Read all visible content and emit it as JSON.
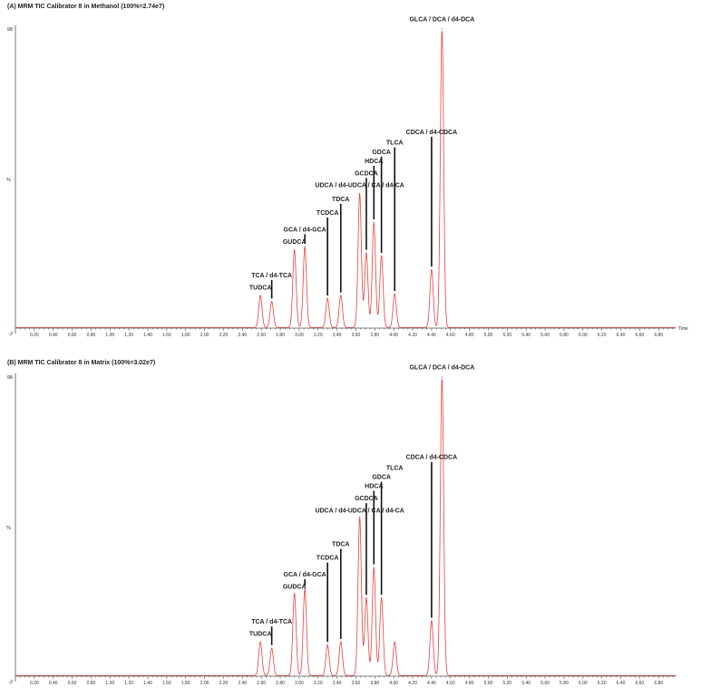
{
  "chart_data": [
    {
      "type": "line",
      "title": "(A) MRM TIC Calibrator 8 in Methanol (100%=2.74e7)",
      "ylabel": "%",
      "yticks": [
        "98",
        "-2"
      ],
      "xlabel": "Time",
      "xlim": [
        0.0,
        6.98
      ],
      "ylim": [
        -2,
        98
      ],
      "xticks": [
        "0.20",
        "0.40",
        "0.60",
        "0.80",
        "1.00",
        "1.20",
        "1.40",
        "1.60",
        "1.80",
        "2.00",
        "2.20",
        "2.40",
        "2.60",
        "2.80",
        "3.00",
        "3.20",
        "3.40",
        "3.60",
        "3.80",
        "4.00",
        "4.20",
        "4.40",
        "4.60",
        "4.80",
        "5.00",
        "5.20",
        "5.40",
        "5.60",
        "5.80",
        "6.00",
        "6.20",
        "6.40",
        "6.60",
        "6.80"
      ],
      "line_color": "#e8413b",
      "baseline": 0,
      "peaks": [
        {
          "x": 2.59,
          "y": 10.5
        },
        {
          "x": 2.71,
          "y": 8.5
        },
        {
          "x": 2.95,
          "y": 25.5
        },
        {
          "x": 3.06,
          "y": 26.5
        },
        {
          "x": 3.3,
          "y": 9.5
        },
        {
          "x": 3.44,
          "y": 10.5
        },
        {
          "x": 3.64,
          "y": 44.0
        },
        {
          "x": 3.71,
          "y": 24.5
        },
        {
          "x": 3.79,
          "y": 34.5
        },
        {
          "x": 3.87,
          "y": 23.5
        },
        {
          "x": 4.01,
          "y": 11.0
        },
        {
          "x": 4.4,
          "y": 19.0
        },
        {
          "x": 4.51,
          "y": 98.0
        }
      ],
      "annotations": [
        {
          "label": "TUDCA",
          "x": 2.59,
          "tip_y": 10.5,
          "label_y": 12.5,
          "line": false
        },
        {
          "label": "TCA / d4-TCA",
          "x": 2.71,
          "tip_y": 9.5,
          "label_y": 16.5,
          "line": true
        },
        {
          "label": "GUDCA",
          "x": 2.95,
          "tip_y": 26.0,
          "label_y": 27.5,
          "line": false
        },
        {
          "label": "GCA / d4-GCA",
          "x": 3.06,
          "tip_y": 27.5,
          "label_y": 31.5,
          "line": true
        },
        {
          "label": "TCDCA",
          "x": 3.3,
          "tip_y": 10.5,
          "label_y": 37.0,
          "line": true
        },
        {
          "label": "TDCA",
          "x": 3.44,
          "tip_y": 11.5,
          "label_y": 41.5,
          "line": true
        },
        {
          "label": "UDCA / d4-UDCA / CA / d4-CA",
          "x": 3.64,
          "tip_y": 45.0,
          "label_y": 46.0,
          "line": false
        },
        {
          "label": "GCDCA",
          "x": 3.71,
          "tip_y": 25.5,
          "label_y": 50.0,
          "line": true
        },
        {
          "label": "HDCA",
          "x": 3.79,
          "tip_y": 35.5,
          "label_y": 54.0,
          "line": true
        },
        {
          "label": "GDCA",
          "x": 3.87,
          "tip_y": 24.5,
          "label_y": 57.0,
          "line": true
        },
        {
          "label": "TLCA",
          "x": 4.01,
          "tip_y": 12.0,
          "label_y": 60.0,
          "line": true
        },
        {
          "label": "CDCA / d4-CDCA",
          "x": 4.4,
          "tip_y": 20.0,
          "label_y": 63.5,
          "line": true
        },
        {
          "label": "GLCA / DCA / d4-DCA",
          "x": 4.51,
          "tip_y": 98.5,
          "label_y": 100.5,
          "line": false
        }
      ]
    },
    {
      "type": "line",
      "title": "(B) MRM TIC Calibrator 8 in Matrix (100%=3.02e7)",
      "ylabel": "%",
      "yticks": [
        "98",
        "-2"
      ],
      "xlabel": "",
      "xlim": [
        0.0,
        6.98
      ],
      "ylim": [
        -2,
        98
      ],
      "xticks": [
        "0.20",
        "0.40",
        "0.60",
        "0.80",
        "1.00",
        "1.20",
        "1.40",
        "1.60",
        "1.80",
        "2.00",
        "2.20",
        "2.40",
        "2.60",
        "2.80",
        "3.00",
        "3.20",
        "3.40",
        "3.60",
        "3.80",
        "4.00",
        "4.20",
        "4.40",
        "4.60",
        "4.80",
        "5.00",
        "5.20",
        "5.40",
        "5.60",
        "5.80",
        "6.00",
        "6.20",
        "6.40",
        "6.60",
        "6.80"
      ],
      "line_color": "#e8413b",
      "baseline": 0,
      "peaks": [
        {
          "x": 2.59,
          "y": 11.0
        },
        {
          "x": 2.71,
          "y": 9.0
        },
        {
          "x": 2.95,
          "y": 27.0
        },
        {
          "x": 3.06,
          "y": 28.5
        },
        {
          "x": 3.3,
          "y": 10.0
        },
        {
          "x": 3.44,
          "y": 11.0
        },
        {
          "x": 3.64,
          "y": 52.0
        },
        {
          "x": 3.71,
          "y": 25.5
        },
        {
          "x": 3.79,
          "y": 35.5
        },
        {
          "x": 3.87,
          "y": 25.5
        },
        {
          "x": 4.01,
          "y": 11.0
        },
        {
          "x": 4.4,
          "y": 18.0
        },
        {
          "x": 4.51,
          "y": 98.0
        }
      ],
      "annotations": [
        {
          "label": "TUDCA",
          "x": 2.59,
          "tip_y": 11.5,
          "label_y": 13.0,
          "line": false
        },
        {
          "label": "TCA / d4-TCA",
          "x": 2.71,
          "tip_y": 10.0,
          "label_y": 17.0,
          "line": true
        },
        {
          "label": "GUDCA",
          "x": 2.95,
          "tip_y": 27.5,
          "label_y": 28.5,
          "line": false
        },
        {
          "label": "GCA / d4-GCA",
          "x": 3.06,
          "tip_y": 29.5,
          "label_y": 32.5,
          "line": true
        },
        {
          "label": "TCDCA",
          "x": 3.3,
          "tip_y": 11.0,
          "label_y": 38.0,
          "line": true
        },
        {
          "label": "TDCA",
          "x": 3.44,
          "tip_y": 12.0,
          "label_y": 42.5,
          "line": true
        },
        {
          "label": "UDCA / d4-UDCA / CA / d4-CA",
          "x": 3.64,
          "tip_y": 53.0,
          "label_y": 53.5,
          "line": false
        },
        {
          "label": "GCDCA",
          "x": 3.71,
          "tip_y": 26.5,
          "label_y": 57.5,
          "line": true
        },
        {
          "label": "HDCA",
          "x": 3.79,
          "tip_y": 36.5,
          "label_y": 61.5,
          "line": true
        },
        {
          "label": "GDCA",
          "x": 3.87,
          "tip_y": 26.5,
          "label_y": 64.5,
          "line": true
        },
        {
          "label": "TLCA",
          "x": 4.01,
          "tip_y": 12.0,
          "label_y": 67.5,
          "line": false
        },
        {
          "label": "CDCA / d4-CDCA",
          "x": 4.4,
          "tip_y": 19.0,
          "label_y": 71.0,
          "line": true
        },
        {
          "label": "GLCA / DCA / d4-DCA",
          "x": 4.51,
          "tip_y": 98.5,
          "label_y": 100.5,
          "line": false
        }
      ]
    }
  ]
}
